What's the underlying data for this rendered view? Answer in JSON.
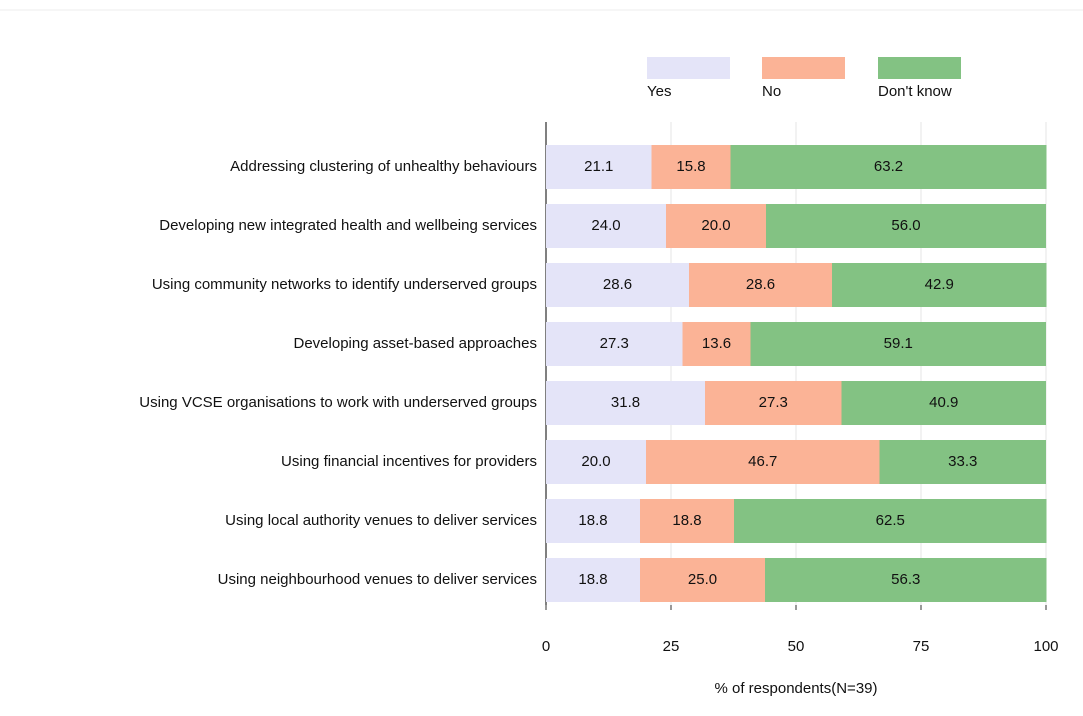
{
  "chart_data": {
    "type": "stacked_bar_horizontal",
    "categories": [
      "Addressing clustering of unhealthy behaviours",
      "Developing new integrated health and wellbeing services",
      "Using community networks to identify underserved groups",
      "Developing asset-based approaches",
      "Using VCSE organisations to work with underserved groups",
      "Using financial incentives for providers",
      "Using local authority venues to deliver services",
      "Using neighbourhood venues to deliver services"
    ],
    "series": [
      {
        "name": "Yes",
        "color": "#e4e4f8",
        "values": [
          21.1,
          24.0,
          28.6,
          27.3,
          31.8,
          20.0,
          18.8,
          18.8
        ],
        "value_labels": [
          "21.1",
          "24.0",
          "28.6",
          "27.3",
          "31.8",
          "20.0",
          "18.8",
          "18.8"
        ]
      },
      {
        "name": "No",
        "color": "#fbb396",
        "values": [
          15.8,
          20.0,
          28.6,
          13.6,
          27.3,
          46.7,
          18.8,
          25.0
        ],
        "value_labels": [
          "15.8",
          "20.0",
          "28.6",
          "13.6",
          "27.3",
          "46.7",
          "18.8",
          "25.0"
        ]
      },
      {
        "name": "Don't know",
        "color": "#83c283",
        "values": [
          63.2,
          56.0,
          42.9,
          59.1,
          40.9,
          33.3,
          62.5,
          56.3
        ],
        "value_labels": [
          "63.2",
          "56.0",
          "42.9",
          "59.1",
          "40.9",
          "33.3",
          "62.5",
          "56.3"
        ]
      }
    ],
    "xlabel": "% of respondents(N=39)",
    "xlim": [
      0,
      100
    ],
    "xticks": [
      0,
      25,
      50,
      75,
      100
    ],
    "grid": true,
    "legend": "top"
  }
}
